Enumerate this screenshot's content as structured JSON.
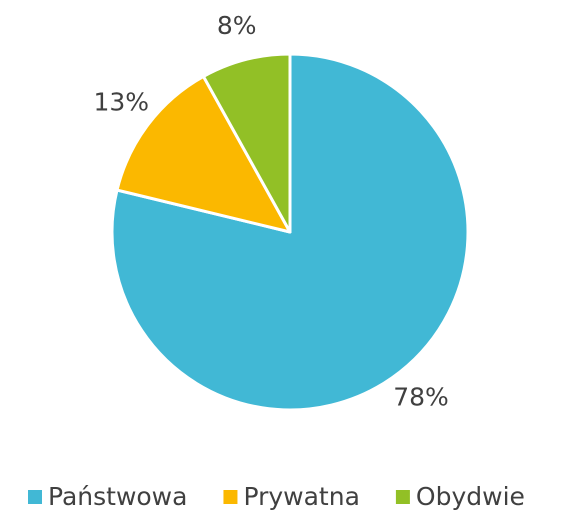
{
  "chart_data": {
    "type": "pie",
    "categories": [
      "Państwowa",
      "Prywatna",
      "Obydwie"
    ],
    "values": [
      78,
      13,
      8
    ],
    "value_labels": [
      "78%",
      "13%",
      "8%"
    ],
    "colors": [
      "#41b8d5",
      "#fbb800",
      "#92c026"
    ],
    "legend": "bottom"
  }
}
